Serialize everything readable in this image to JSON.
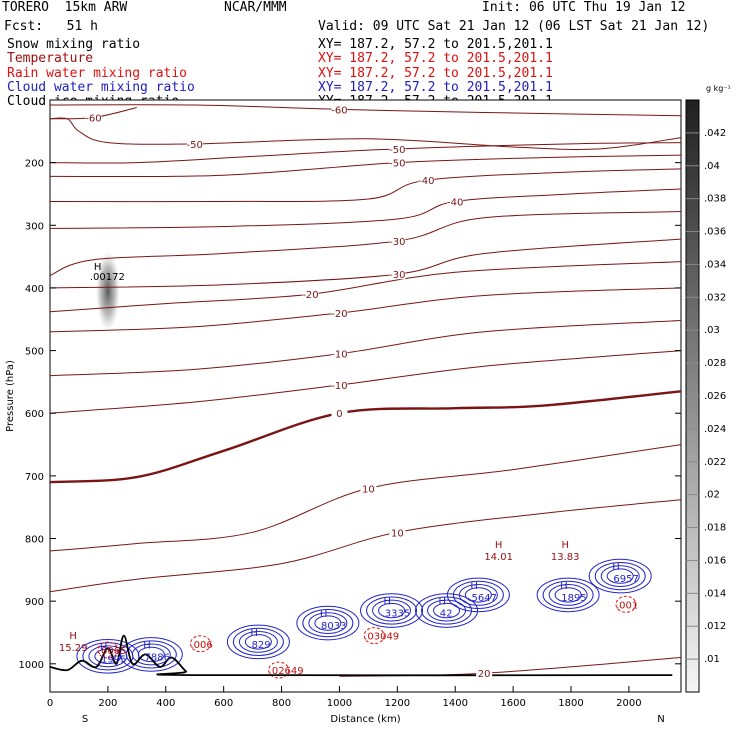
{
  "header": {
    "model": "TORERO  15km ARW",
    "center": "NCAR/MMM",
    "init": "Init: 06 UTC Thu 19 Jan 12",
    "fcst": "Fcst:   51 h",
    "valid": "Valid: 09 UTC Sat 21 Jan 12 (06 LST Sat 21 Jan 12)"
  },
  "fields": [
    {
      "name": "Snow mixing ratio",
      "xy": "",
      "color": "#000000"
    },
    {
      "name": "Temperature",
      "xy": "XY= 187.2, 57.2 to 201.5,201.1",
      "color": "#a01010"
    },
    {
      "name": "Rain water mixing ratio",
      "xy": "XY= 187.2, 57.2 to 201.5,201.1",
      "color": "#e01010"
    },
    {
      "name": "Cloud water mixing ratio",
      "xy": "XY= 187.2, 57.2 to 201.5,201.1",
      "color": "#2020c0"
    },
    {
      "name": "Cloud ice mixing ratio",
      "xy": "XY= 187.2, 57.2 to 201.5,201.1",
      "color": "#000000"
    }
  ],
  "snow_xy": "XY= 187.2, 57.2 to 201.5,201.1",
  "colorbar": {
    "unit": "g kg⁻¹",
    "labels": [
      ".042",
      ".04",
      ".038",
      ".036",
      ".034",
      ".032",
      ".03",
      ".028",
      ".026",
      ".024",
      ".022",
      ".02",
      ".018",
      ".016",
      ".014",
      ".012",
      ".01"
    ]
  },
  "axes": {
    "xlabel": "Distance (km)",
    "ylabel": "Pressure (hPa)",
    "left_end": "S",
    "right_end": "N",
    "x_ticks": [
      "0",
      "200",
      "400",
      "600",
      "800",
      "1000",
      "1200",
      "1400",
      "1600",
      "1800",
      "2000"
    ],
    "y_ticks": [
      "200",
      "300",
      "400",
      "500",
      "600",
      "700",
      "800",
      "900",
      "1000"
    ]
  },
  "chart_data": {
    "type": "cross-section contour",
    "title": "",
    "xlabel": "Distance (km)",
    "ylabel": "Pressure (hPa)",
    "xlim": [
      0,
      2180
    ],
    "ylim": [
      1045,
      100
    ],
    "x_ticks": [
      0,
      200,
      400,
      600,
      800,
      1000,
      1200,
      1400,
      1600,
      1800,
      2000
    ],
    "y_ticks": [
      200,
      300,
      400,
      500,
      600,
      700,
      800,
      900,
      1000
    ],
    "temperature_isotherms": [
      {
        "label": "-60",
        "points": [
          [
            0,
            108
          ],
          [
            500,
            108
          ],
          [
            1000,
            115
          ],
          [
            1500,
            120
          ],
          [
            2180,
            125
          ]
        ]
      },
      {
        "label": "-60",
        "points": [
          [
            0,
            130
          ],
          [
            150,
            128
          ],
          [
            300,
            112
          ]
        ]
      },
      {
        "label": "-50",
        "points": [
          [
            0,
            130
          ],
          [
            60,
            130
          ],
          [
            100,
            150
          ],
          [
            200,
            168
          ],
          [
            500,
            170
          ],
          [
            1100,
            162
          ],
          [
            1600,
            175
          ],
          [
            1900,
            178
          ],
          [
            2180,
            160
          ]
        ]
      },
      {
        "label": "-50",
        "points": [
          [
            0,
            200
          ],
          [
            300,
            200
          ],
          [
            700,
            190
          ],
          [
            1200,
            178
          ],
          [
            1800,
            170
          ],
          [
            2180,
            168
          ]
        ]
      },
      {
        "label": "-50",
        "points": [
          [
            0,
            222
          ],
          [
            600,
            220
          ],
          [
            1200,
            200
          ],
          [
            1700,
            192
          ],
          [
            2180,
            188
          ]
        ]
      },
      {
        "label": "-40",
        "points": [
          [
            0,
            262
          ],
          [
            600,
            262
          ],
          [
            1100,
            258
          ],
          [
            1300,
            228
          ],
          [
            1800,
            215
          ],
          [
            2180,
            210
          ]
        ]
      },
      {
        "label": "-40",
        "points": [
          [
            0,
            305
          ],
          [
            600,
            302
          ],
          [
            1200,
            290
          ],
          [
            1400,
            262
          ],
          [
            1800,
            250
          ],
          [
            2180,
            242
          ]
        ]
      },
      {
        "label": "-30",
        "points": [
          [
            0,
            380
          ],
          [
            150,
            355
          ],
          [
            600,
            345
          ],
          [
            1200,
            325
          ],
          [
            1500,
            288
          ],
          [
            2180,
            278
          ]
        ]
      },
      {
        "label": "-30",
        "points": [
          [
            0,
            400
          ],
          [
            600,
            395
          ],
          [
            1200,
            378
          ],
          [
            1500,
            345
          ],
          [
            2180,
            322
          ]
        ]
      },
      {
        "label": "-20",
        "points": [
          [
            0,
            438
          ],
          [
            400,
            425
          ],
          [
            900,
            410
          ],
          [
            1400,
            375
          ],
          [
            2180,
            358
          ]
        ]
      },
      {
        "label": "-20",
        "points": [
          [
            0,
            470
          ],
          [
            500,
            462
          ],
          [
            1000,
            440
          ],
          [
            1500,
            412
          ],
          [
            2180,
            400
          ]
        ]
      },
      {
        "label": "-10",
        "points": [
          [
            0,
            540
          ],
          [
            500,
            530
          ],
          [
            1000,
            505
          ],
          [
            1500,
            470
          ],
          [
            2180,
            452
          ]
        ]
      },
      {
        "label": "-10",
        "points": [
          [
            0,
            600
          ],
          [
            500,
            582
          ],
          [
            1000,
            555
          ],
          [
            1500,
            525
          ],
          [
            2180,
            500
          ]
        ]
      },
      {
        "label": "0",
        "points": [
          [
            0,
            710
          ],
          [
            300,
            702
          ],
          [
            600,
            660
          ],
          [
            1000,
            600
          ],
          [
            1400,
            592
          ],
          [
            1700,
            588
          ],
          [
            2180,
            565
          ]
        ]
      },
      {
        "label": "10",
        "points": [
          [
            0,
            820
          ],
          [
            300,
            808
          ],
          [
            700,
            790
          ],
          [
            1100,
            720
          ],
          [
            1600,
            690
          ],
          [
            2180,
            650
          ]
        ]
      },
      {
        "label": "10",
        "points": [
          [
            0,
            885
          ],
          [
            300,
            865
          ],
          [
            800,
            840
          ],
          [
            1200,
            790
          ],
          [
            1700,
            760
          ],
          [
            2180,
            738
          ]
        ]
      },
      {
        "label": "20",
        "points": [
          [
            1000,
            1020
          ],
          [
            1500,
            1015
          ],
          [
            2180,
            990
          ]
        ]
      }
    ],
    "cloud_ice_maximum": {
      "label": ".00172",
      "x": 200,
      "p": 400,
      "range_p": [
        340,
        470
      ]
    },
    "cloud_water_maxima": [
      {
        "x": 200,
        "p": 988,
        "label": ".1995"
      },
      {
        "x": 350,
        "p": 985,
        "label": ".7886"
      },
      {
        "x": 720,
        "p": 965,
        "label": ".829"
      },
      {
        "x": 960,
        "p": 935,
        "label": ".8033"
      },
      {
        "x": 1180,
        "p": 915,
        "label": ".3335"
      },
      {
        "x": 1370,
        "p": 915,
        "label": ".42"
      },
      {
        "x": 1480,
        "p": 890,
        "label": ".5647"
      },
      {
        "x": 1790,
        "p": 890,
        "label": ".1895"
      },
      {
        "x": 1970,
        "p": 860,
        "label": ".6957"
      }
    ],
    "rain_water_maxima": [
      {
        "x": 200,
        "p": 978,
        "label": ".0065"
      },
      {
        "x": 520,
        "p": 968,
        "label": ".006"
      },
      {
        "x": 790,
        "p": 1010,
        "label": ".02649"
      },
      {
        "x": 1120,
        "p": 955,
        "label": ".03049"
      },
      {
        "x": 1990,
        "p": 905,
        "label": ".001"
      }
    ],
    "temperature_maxima": [
      {
        "x": 80,
        "p": 960,
        "label": "15.29"
      },
      {
        "x": 1550,
        "p": 815,
        "label": "14.01"
      },
      {
        "x": 1780,
        "p": 815,
        "label": "13.83"
      }
    ],
    "terrain": [
      [
        0,
        1005
      ],
      [
        60,
        1010
      ],
      [
        110,
        995
      ],
      [
        160,
        1005
      ],
      [
        200,
        975
      ],
      [
        230,
        1000
      ],
      [
        255,
        955
      ],
      [
        285,
        1000
      ],
      [
        330,
        985
      ],
      [
        380,
        1005
      ],
      [
        420,
        990
      ],
      [
        470,
        1012
      ],
      [
        500,
        1018
      ],
      [
        2150,
        1018
      ]
    ]
  }
}
